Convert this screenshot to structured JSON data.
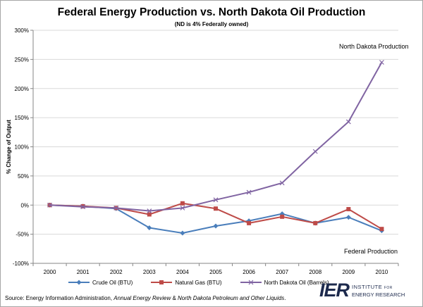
{
  "title": "Federal Energy Production vs. North Dakota Oil Production",
  "subtitle": "(ND is 4% Federally owned)",
  "source": {
    "prefix": "Source: Energy Information Administration, ",
    "italic1": "Annual Energy Review",
    "amp": " & ",
    "italic2": "North Dakota Petroleum and Other Liquids",
    "suffix": "."
  },
  "logo": {
    "mark": "IER",
    "line1": "INSTITUTE",
    "line1_small": "FOR",
    "line2": "ENERGY RESEARCH"
  },
  "chart_data": {
    "type": "line",
    "title": "Federal Energy Production vs. North Dakota Oil Production",
    "subtitle": "(ND is 4% Federally owned)",
    "xlabel": "",
    "ylabel": "% Change of Output",
    "x": [
      "2000",
      "2001",
      "2002",
      "2003",
      "2004",
      "2005",
      "2006",
      "2007",
      "2008",
      "2009",
      "2010"
    ],
    "ylim": [
      -100,
      300
    ],
    "yticks": [
      -100,
      -50,
      0,
      50,
      100,
      150,
      200,
      250,
      300
    ],
    "y_format": "percent",
    "grid": true,
    "legend": "bottom",
    "series": [
      {
        "name": "Crude Oil (BTU)",
        "marker": "diamond",
        "color": "#4a7ebb",
        "values": [
          0,
          -2,
          -6,
          -39,
          -48,
          -36,
          -27,
          -15,
          -31,
          -21,
          -44
        ]
      },
      {
        "name": "Natural Gas (BTU)",
        "marker": "square",
        "color": "#be4b48",
        "values": [
          0,
          -2,
          -5,
          -16,
          3,
          -6,
          -31,
          -20,
          -31,
          -7,
          -41
        ]
      },
      {
        "name": "North Dakota Oil (Barrels)",
        "marker": "x",
        "color": "#8064a2",
        "values": [
          0,
          -3,
          -5,
          -10,
          -5,
          9,
          22,
          38,
          92,
          143,
          245
        ]
      }
    ],
    "annotations": [
      {
        "text": "North Dakota Production",
        "near": "upper-right"
      },
      {
        "text": "Federal Production",
        "near": "lower-right"
      }
    ]
  }
}
